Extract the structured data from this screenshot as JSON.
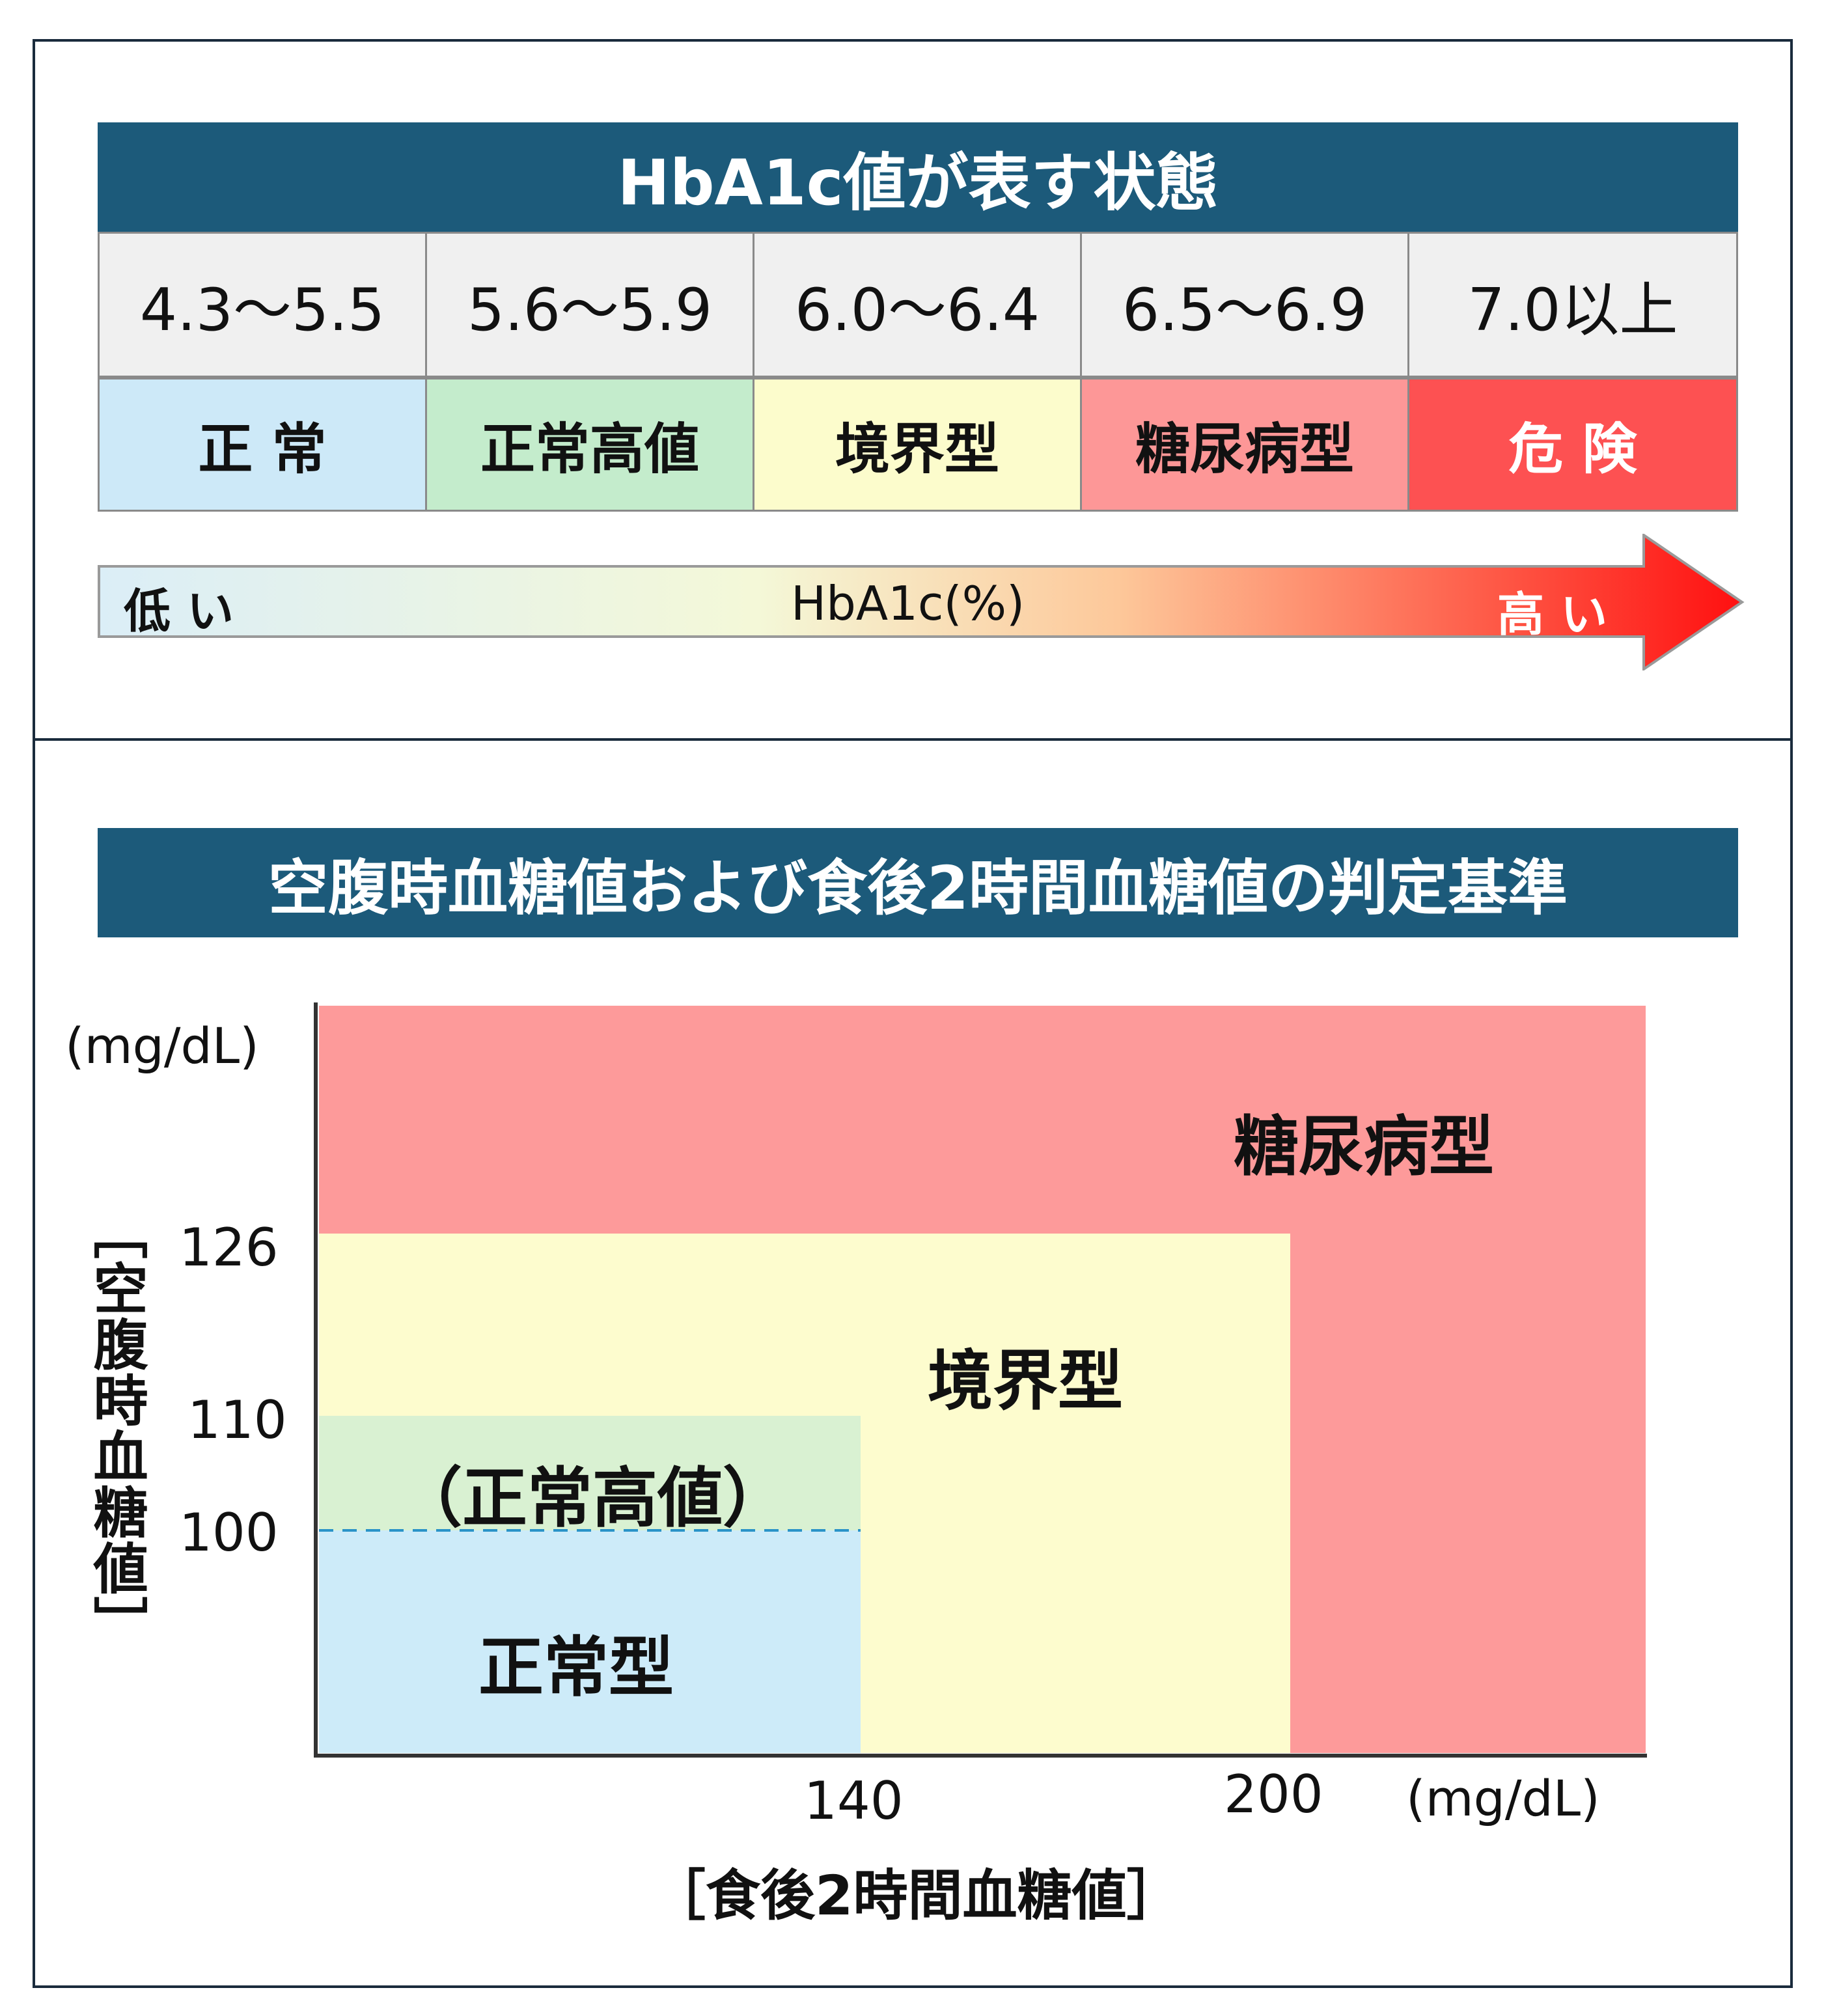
{
  "hba1c_table": {
    "title": "HbA1c値が表す状態",
    "columns": [
      {
        "range": "4.3～5.5",
        "state": "正 常",
        "color": "#cde9f8"
      },
      {
        "range": "5.6～5.9",
        "state": "正常高値",
        "color": "#c4eccc"
      },
      {
        "range": "6.0～6.4",
        "state": "境界型",
        "color": "#fcfccc"
      },
      {
        "range": "6.5～6.9",
        "state": "糖尿病型",
        "color": "#fd9797"
      },
      {
        "range": "7.0以上",
        "state": "危 険",
        "color": "#fd5152"
      }
    ]
  },
  "arrow": {
    "low_label": "低 い",
    "middle_label": "HbA1c(%)",
    "high_label": "高 い",
    "gradient": [
      "#dbeef7",
      "#f4f8d8",
      "#fdc89a",
      "#ff1010"
    ]
  },
  "criteria": {
    "title": "空腹時血糖値および食後2時間血糖値の判定基準",
    "y_unit": "(mg/dL)",
    "x_unit": "(mg/dL)",
    "y_axis_title": "［空腹時血糖値］",
    "x_axis_title": "［食後2時間血糖値］",
    "y_ticks": [
      "126",
      "110",
      "100"
    ],
    "x_ticks": [
      "140",
      "200"
    ],
    "zones": {
      "diabetes": {
        "label": "糖尿病型",
        "color": "#fd9a9a"
      },
      "borderline": {
        "label": "境界型",
        "color": "#fdfcce"
      },
      "high_normal": {
        "label": "（正常高値）",
        "color": "#d9f1d2"
      },
      "normal": {
        "label": "正常型",
        "color": "#cdebf9"
      }
    },
    "dashed_line_color": "#2a93c8"
  }
}
